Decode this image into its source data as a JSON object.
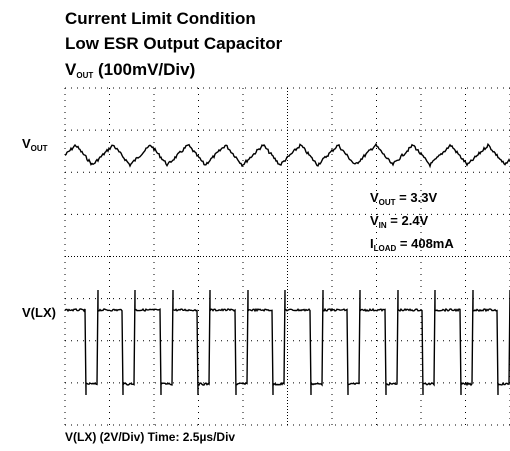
{
  "title_lines": [
    "Current Limit Condition",
    "Low ESR Output Capacitor"
  ],
  "trace_scale": {
    "symbol": "V",
    "subscript": "OUT",
    "text": " (100mV/Div)"
  },
  "channel_labels": [
    {
      "symbol": "V",
      "subscript": "OUT"
    },
    {
      "text": "V(LX)"
    }
  ],
  "annotations": [
    {
      "symbol": "V",
      "subscript": "OUT",
      "text": " = 3.3V"
    },
    {
      "symbol": "V",
      "subscript": "IN",
      "text": " = 2.4V"
    },
    {
      "symbol": "I",
      "subscript": "LOAD",
      "text": " = 408mA"
    }
  ],
  "footer": "V(LX) (2V/Div) Time: 2.5µs/Div"
}
